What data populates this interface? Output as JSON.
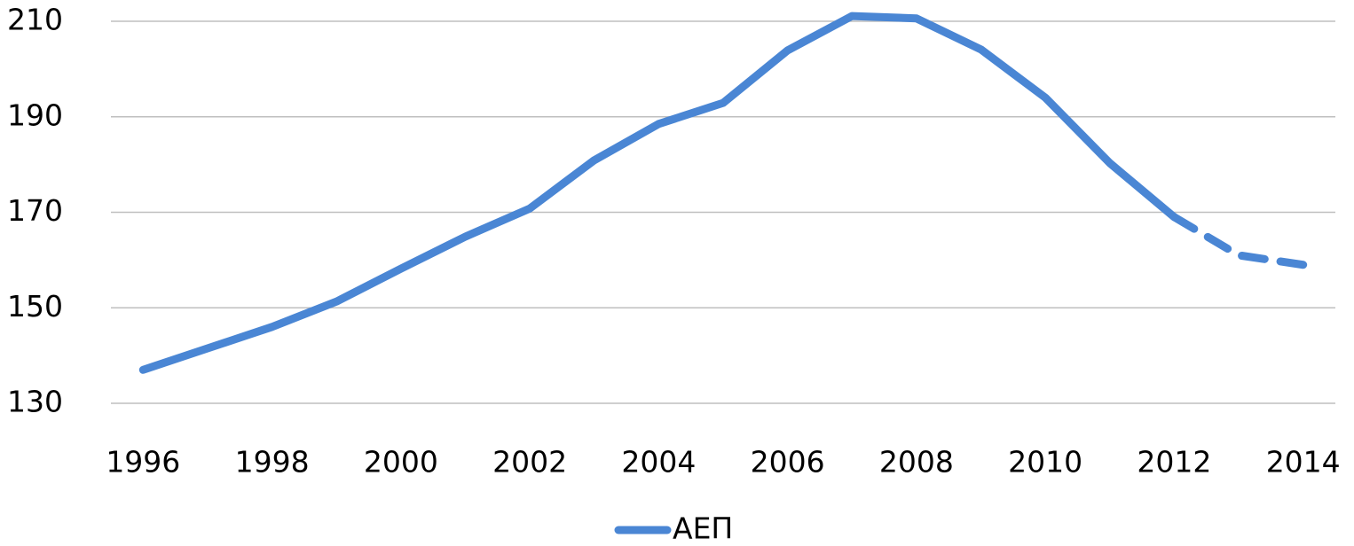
{
  "chart_data": {
    "type": "line",
    "categories": [
      "1996",
      null,
      "1998",
      null,
      "2000",
      null,
      "2002",
      null,
      "2004",
      null,
      "2006",
      null,
      "2008",
      null,
      "2010",
      null,
      "2012",
      null,
      "2014"
    ],
    "series": [
      {
        "name": "ΑΕΠ",
        "color": "#4a86d4",
        "values": [
          137,
          141.5,
          146,
          151.3,
          158.2,
          164.9,
          170.8,
          180.9,
          188.5,
          192.9,
          203.9,
          211.1,
          210.6,
          204.1,
          194,
          180.3,
          169,
          161,
          159
        ],
        "dashed_from": 16
      }
    ],
    "ylim": [
      130,
      210
    ],
    "yticks": [
      130,
      150,
      170,
      190,
      210
    ],
    "grid": true,
    "legend": "bottom"
  }
}
